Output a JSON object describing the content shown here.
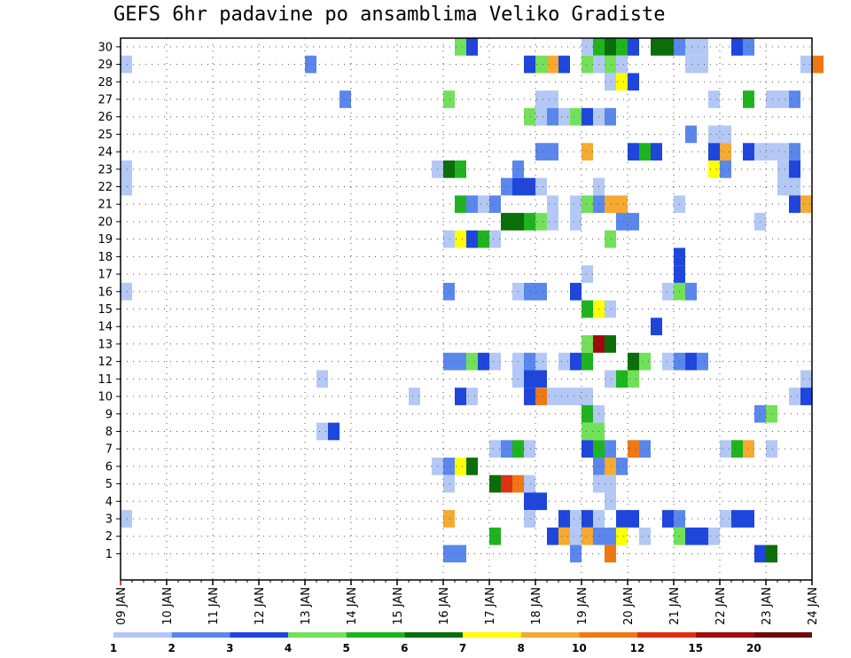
{
  "chart_data": {
    "type": "heatmap",
    "title": "GEFS 6hr padavine po ansamblima Veliko Gradiste",
    "y_members": [
      1,
      30
    ],
    "x_tick_labels": [
      "09 JAN",
      "10 JAN",
      "11 JAN",
      "12 JAN",
      "13 JAN",
      "14 JAN",
      "15 JAN",
      "16 JAN",
      "17 JAN",
      "18 JAN",
      "19 JAN",
      "20 JAN",
      "21 JAN",
      "22 JAN",
      "23 JAN",
      "24 JAN"
    ],
    "x_start_day": 9,
    "x_end_day": 24,
    "steps_per_day": 4,
    "grid": true,
    "legend_placement": "bottom",
    "legend_levels": [
      "1",
      "2",
      "3",
      "4",
      "5",
      "6",
      "7",
      "8",
      "10",
      "12",
      "15",
      "20"
    ],
    "legend_colors": [
      "#b4c8f5",
      "#5a87eb",
      "#1e46dc",
      "#73e05a",
      "#1eb41e",
      "#0a6e0a",
      "#ffff00",
      "#f5aa32",
      "#f07814",
      "#dc3214",
      "#a00a0a",
      "#6e0a0a"
    ],
    "cells": [
      {
        "member": 30,
        "day": 16.25,
        "c": 3
      },
      {
        "member": 30,
        "day": 16.5,
        "c": 2
      },
      {
        "member": 30,
        "day": 19.0,
        "c": 0
      },
      {
        "member": 30,
        "day": 19.25,
        "c": 4
      },
      {
        "member": 30,
        "day": 19.5,
        "c": 5
      },
      {
        "member": 30,
        "day": 19.75,
        "c": 4
      },
      {
        "member": 30,
        "day": 20.0,
        "c": 2
      },
      {
        "member": 30,
        "day": 20.5,
        "c": 5
      },
      {
        "member": 30,
        "day": 20.75,
        "c": 5
      },
      {
        "member": 30,
        "day": 21.0,
        "c": 1
      },
      {
        "member": 30,
        "day": 21.25,
        "c": 0
      },
      {
        "member": 30,
        "day": 21.5,
        "c": 0
      },
      {
        "member": 30,
        "day": 22.25,
        "c": 2
      },
      {
        "member": 30,
        "day": 22.5,
        "c": 1
      },
      {
        "member": 29,
        "day": 9.0,
        "c": 0
      },
      {
        "member": 29,
        "day": 13.0,
        "c": 1
      },
      {
        "member": 29,
        "day": 17.75,
        "c": 2
      },
      {
        "member": 29,
        "day": 18.0,
        "c": 3
      },
      {
        "member": 29,
        "day": 18.25,
        "c": 7
      },
      {
        "member": 29,
        "day": 18.5,
        "c": 2
      },
      {
        "member": 29,
        "day": 19.0,
        "c": 3
      },
      {
        "member": 29,
        "day": 19.25,
        "c": 0
      },
      {
        "member": 29,
        "day": 19.5,
        "c": 3
      },
      {
        "member": 29,
        "day": 19.75,
        "c": 0
      },
      {
        "member": 29,
        "day": 21.25,
        "c": 0
      },
      {
        "member": 29,
        "day": 21.5,
        "c": 0
      },
      {
        "member": 29,
        "day": 23.75,
        "c": 0
      },
      {
        "member": 29,
        "day": 24.0,
        "c": 8
      },
      {
        "member": 28,
        "day": 19.5,
        "c": 0
      },
      {
        "member": 28,
        "day": 19.75,
        "c": 6
      },
      {
        "member": 28,
        "day": 20.0,
        "c": 2
      },
      {
        "member": 27,
        "day": 13.75,
        "c": 1
      },
      {
        "member": 27,
        "day": 16.0,
        "c": 3
      },
      {
        "member": 27,
        "day": 18.0,
        "c": 0
      },
      {
        "member": 27,
        "day": 18.25,
        "c": 0
      },
      {
        "member": 27,
        "day": 21.75,
        "c": 0
      },
      {
        "member": 27,
        "day": 22.5,
        "c": 4
      },
      {
        "member": 27,
        "day": 23.0,
        "c": 0
      },
      {
        "member": 27,
        "day": 23.25,
        "c": 0
      },
      {
        "member": 27,
        "day": 23.5,
        "c": 1
      },
      {
        "member": 26,
        "day": 17.75,
        "c": 3
      },
      {
        "member": 26,
        "day": 18.0,
        "c": 0
      },
      {
        "member": 26,
        "day": 18.25,
        "c": 1
      },
      {
        "member": 26,
        "day": 18.5,
        "c": 0
      },
      {
        "member": 26,
        "day": 18.75,
        "c": 3
      },
      {
        "member": 26,
        "day": 19.0,
        "c": 2
      },
      {
        "member": 26,
        "day": 19.25,
        "c": 0
      },
      {
        "member": 26,
        "day": 19.5,
        "c": 1
      },
      {
        "member": 25,
        "day": 21.25,
        "c": 1
      },
      {
        "member": 25,
        "day": 21.75,
        "c": 0
      },
      {
        "member": 25,
        "day": 22.0,
        "c": 0
      },
      {
        "member": 24,
        "day": 18.0,
        "c": 1
      },
      {
        "member": 24,
        "day": 18.25,
        "c": 1
      },
      {
        "member": 24,
        "day": 19.0,
        "c": 7
      },
      {
        "member": 24,
        "day": 20.0,
        "c": 2
      },
      {
        "member": 24,
        "day": 20.25,
        "c": 4
      },
      {
        "member": 24,
        "day": 20.5,
        "c": 2
      },
      {
        "member": 24,
        "day": 21.75,
        "c": 2
      },
      {
        "member": 24,
        "day": 22.0,
        "c": 7
      },
      {
        "member": 24,
        "day": 22.5,
        "c": 2
      },
      {
        "member": 24,
        "day": 22.75,
        "c": 0
      },
      {
        "member": 24,
        "day": 23.0,
        "c": 0
      },
      {
        "member": 24,
        "day": 23.25,
        "c": 0
      },
      {
        "member": 24,
        "day": 23.5,
        "c": 1
      },
      {
        "member": 23,
        "day": 9.0,
        "c": 0
      },
      {
        "member": 23,
        "day": 15.75,
        "c": 0
      },
      {
        "member": 23,
        "day": 16.0,
        "c": 5
      },
      {
        "member": 23,
        "day": 16.25,
        "c": 4
      },
      {
        "member": 23,
        "day": 17.5,
        "c": 1
      },
      {
        "member": 23,
        "day": 21.75,
        "c": 6
      },
      {
        "member": 23,
        "day": 22.0,
        "c": 1
      },
      {
        "member": 23,
        "day": 23.25,
        "c": 0
      },
      {
        "member": 23,
        "day": 23.5,
        "c": 2
      },
      {
        "member": 22,
        "day": 9.0,
        "c": 0
      },
      {
        "member": 22,
        "day": 17.25,
        "c": 1
      },
      {
        "member": 22,
        "day": 17.5,
        "c": 2
      },
      {
        "member": 22,
        "day": 17.75,
        "c": 2
      },
      {
        "member": 22,
        "day": 18.0,
        "c": 0
      },
      {
        "member": 22,
        "day": 19.25,
        "c": 0
      },
      {
        "member": 22,
        "day": 23.25,
        "c": 0
      },
      {
        "member": 22,
        "day": 23.5,
        "c": 0
      },
      {
        "member": 21,
        "day": 16.25,
        "c": 4
      },
      {
        "member": 21,
        "day": 16.5,
        "c": 1
      },
      {
        "member": 21,
        "day": 16.75,
        "c": 0
      },
      {
        "member": 21,
        "day": 17.0,
        "c": 1
      },
      {
        "member": 21,
        "day": 18.25,
        "c": 0
      },
      {
        "member": 21,
        "day": 18.75,
        "c": 0
      },
      {
        "member": 21,
        "day": 19.0,
        "c": 3
      },
      {
        "member": 21,
        "day": 19.25,
        "c": 1
      },
      {
        "member": 21,
        "day": 19.5,
        "c": 7
      },
      {
        "member": 21,
        "day": 19.75,
        "c": 7
      },
      {
        "member": 21,
        "day": 21.0,
        "c": 0
      },
      {
        "member": 21,
        "day": 23.5,
        "c": 2
      },
      {
        "member": 21,
        "day": 23.75,
        "c": 7
      },
      {
        "member": 20,
        "day": 17.25,
        "c": 5
      },
      {
        "member": 20,
        "day": 17.5,
        "c": 5
      },
      {
        "member": 20,
        "day": 17.75,
        "c": 4
      },
      {
        "member": 20,
        "day": 18.0,
        "c": 3
      },
      {
        "member": 20,
        "day": 18.25,
        "c": 0
      },
      {
        "member": 20,
        "day": 18.75,
        "c": 0
      },
      {
        "member": 20,
        "day": 19.75,
        "c": 1
      },
      {
        "member": 20,
        "day": 20.0,
        "c": 1
      },
      {
        "member": 20,
        "day": 22.75,
        "c": 0
      },
      {
        "member": 19,
        "day": 16.0,
        "c": 0
      },
      {
        "member": 19,
        "day": 16.25,
        "c": 6
      },
      {
        "member": 19,
        "day": 16.5,
        "c": 2
      },
      {
        "member": 19,
        "day": 16.75,
        "c": 4
      },
      {
        "member": 19,
        "day": 17.0,
        "c": 0
      },
      {
        "member": 19,
        "day": 19.5,
        "c": 3
      },
      {
        "member": 18,
        "day": 21.0,
        "c": 2
      },
      {
        "member": 17,
        "day": 19.0,
        "c": 0
      },
      {
        "member": 17,
        "day": 21.0,
        "c": 2
      },
      {
        "member": 16,
        "day": 9.0,
        "c": 0
      },
      {
        "member": 16,
        "day": 16.0,
        "c": 1
      },
      {
        "member": 16,
        "day": 17.5,
        "c": 0
      },
      {
        "member": 16,
        "day": 17.75,
        "c": 1
      },
      {
        "member": 16,
        "day": 18.0,
        "c": 1
      },
      {
        "member": 16,
        "day": 18.75,
        "c": 2
      },
      {
        "member": 16,
        "day": 20.75,
        "c": 0
      },
      {
        "member": 16,
        "day": 21.0,
        "c": 3
      },
      {
        "member": 16,
        "day": 21.25,
        "c": 1
      },
      {
        "member": 15,
        "day": 19.0,
        "c": 4
      },
      {
        "member": 15,
        "day": 19.25,
        "c": 6
      },
      {
        "member": 15,
        "day": 19.5,
        "c": 0
      },
      {
        "member": 14,
        "day": 20.5,
        "c": 2
      },
      {
        "member": 13,
        "day": 19.0,
        "c": 3
      },
      {
        "member": 13,
        "day": 19.25,
        "c": 10
      },
      {
        "member": 13,
        "day": 19.5,
        "c": 5
      },
      {
        "member": 12,
        "day": 16.0,
        "c": 1
      },
      {
        "member": 12,
        "day": 16.25,
        "c": 1
      },
      {
        "member": 12,
        "day": 16.5,
        "c": 3
      },
      {
        "member": 12,
        "day": 16.75,
        "c": 2
      },
      {
        "member": 12,
        "day": 17.0,
        "c": 0
      },
      {
        "member": 12,
        "day": 17.5,
        "c": 0
      },
      {
        "member": 12,
        "day": 17.75,
        "c": 1
      },
      {
        "member": 12,
        "day": 18.0,
        "c": 0
      },
      {
        "member": 12,
        "day": 18.5,
        "c": 0
      },
      {
        "member": 12,
        "day": 18.75,
        "c": 2
      },
      {
        "member": 12,
        "day": 19.0,
        "c": 4
      },
      {
        "member": 12,
        "day": 20.0,
        "c": 5
      },
      {
        "member": 12,
        "day": 20.25,
        "c": 3
      },
      {
        "member": 12,
        "day": 20.75,
        "c": 0
      },
      {
        "member": 12,
        "day": 21.0,
        "c": 1
      },
      {
        "member": 12,
        "day": 21.25,
        "c": 2
      },
      {
        "member": 12,
        "day": 21.5,
        "c": 1
      },
      {
        "member": 11,
        "day": 13.25,
        "c": 0
      },
      {
        "member": 11,
        "day": 17.5,
        "c": 0
      },
      {
        "member": 11,
        "day": 17.75,
        "c": 2
      },
      {
        "member": 11,
        "day": 18.0,
        "c": 2
      },
      {
        "member": 11,
        "day": 19.5,
        "c": 0
      },
      {
        "member": 11,
        "day": 19.75,
        "c": 4
      },
      {
        "member": 11,
        "day": 20.0,
        "c": 3
      },
      {
        "member": 11,
        "day": 23.75,
        "c": 0
      },
      {
        "member": 10,
        "day": 15.25,
        "c": 0
      },
      {
        "member": 10,
        "day": 16.25,
        "c": 2
      },
      {
        "member": 10,
        "day": 16.5,
        "c": 0
      },
      {
        "member": 10,
        "day": 17.75,
        "c": 2
      },
      {
        "member": 10,
        "day": 18.0,
        "c": 8
      },
      {
        "member": 10,
        "day": 18.25,
        "c": 0
      },
      {
        "member": 10,
        "day": 18.5,
        "c": 0
      },
      {
        "member": 10,
        "day": 18.75,
        "c": 0
      },
      {
        "member": 10,
        "day": 19.0,
        "c": 0
      },
      {
        "member": 10,
        "day": 23.5,
        "c": 0
      },
      {
        "member": 10,
        "day": 23.75,
        "c": 2
      },
      {
        "member": 9,
        "day": 19.0,
        "c": 4
      },
      {
        "member": 9,
        "day": 19.25,
        "c": 0
      },
      {
        "member": 9,
        "day": 22.75,
        "c": 1
      },
      {
        "member": 9,
        "day": 23.0,
        "c": 3
      },
      {
        "member": 8,
        "day": 13.25,
        "c": 0
      },
      {
        "member": 8,
        "day": 13.5,
        "c": 2
      },
      {
        "member": 8,
        "day": 19.0,
        "c": 3
      },
      {
        "member": 8,
        "day": 19.25,
        "c": 3
      },
      {
        "member": 7,
        "day": 17.0,
        "c": 0
      },
      {
        "member": 7,
        "day": 17.25,
        "c": 1
      },
      {
        "member": 7,
        "day": 17.5,
        "c": 4
      },
      {
        "member": 7,
        "day": 17.75,
        "c": 0
      },
      {
        "member": 7,
        "day": 19.0,
        "c": 2
      },
      {
        "member": 7,
        "day": 19.25,
        "c": 4
      },
      {
        "member": 7,
        "day": 19.5,
        "c": 1
      },
      {
        "member": 7,
        "day": 20.0,
        "c": 8
      },
      {
        "member": 7,
        "day": 20.25,
        "c": 1
      },
      {
        "member": 7,
        "day": 22.0,
        "c": 0
      },
      {
        "member": 7,
        "day": 22.25,
        "c": 4
      },
      {
        "member": 7,
        "day": 22.5,
        "c": 7
      },
      {
        "member": 7,
        "day": 23.0,
        "c": 0
      },
      {
        "member": 6,
        "day": 15.75,
        "c": 0
      },
      {
        "member": 6,
        "day": 16.0,
        "c": 1
      },
      {
        "member": 6,
        "day": 16.25,
        "c": 6
      },
      {
        "member": 6,
        "day": 16.5,
        "c": 5
      },
      {
        "member": 6,
        "day": 19.25,
        "c": 1
      },
      {
        "member": 6,
        "day": 19.5,
        "c": 7
      },
      {
        "member": 6,
        "day": 19.75,
        "c": 1
      },
      {
        "member": 5,
        "day": 16.0,
        "c": 0
      },
      {
        "member": 5,
        "day": 17.0,
        "c": 5
      },
      {
        "member": 5,
        "day": 17.25,
        "c": 9
      },
      {
        "member": 5,
        "day": 17.5,
        "c": 8
      },
      {
        "member": 5,
        "day": 17.75,
        "c": 0
      },
      {
        "member": 5,
        "day": 19.25,
        "c": 0
      },
      {
        "member": 5,
        "day": 19.5,
        "c": 0
      },
      {
        "member": 4,
        "day": 17.75,
        "c": 2
      },
      {
        "member": 4,
        "day": 18.0,
        "c": 2
      },
      {
        "member": 4,
        "day": 19.5,
        "c": 0
      },
      {
        "member": 3,
        "day": 9.0,
        "c": 0
      },
      {
        "member": 3,
        "day": 16.0,
        "c": 7
      },
      {
        "member": 3,
        "day": 17.75,
        "c": 0
      },
      {
        "member": 3,
        "day": 18.5,
        "c": 2
      },
      {
        "member": 3,
        "day": 18.75,
        "c": 0
      },
      {
        "member": 3,
        "day": 19.0,
        "c": 2
      },
      {
        "member": 3,
        "day": 19.25,
        "c": 0
      },
      {
        "member": 3,
        "day": 19.75,
        "c": 2
      },
      {
        "member": 3,
        "day": 20.0,
        "c": 2
      },
      {
        "member": 3,
        "day": 20.75,
        "c": 2
      },
      {
        "member": 3,
        "day": 21.0,
        "c": 1
      },
      {
        "member": 3,
        "day": 22.0,
        "c": 0
      },
      {
        "member": 3,
        "day": 22.25,
        "c": 2
      },
      {
        "member": 3,
        "day": 22.5,
        "c": 2
      },
      {
        "member": 2,
        "day": 17.0,
        "c": 4
      },
      {
        "member": 2,
        "day": 18.25,
        "c": 2
      },
      {
        "member": 2,
        "day": 18.5,
        "c": 7
      },
      {
        "member": 2,
        "day": 18.75,
        "c": 0
      },
      {
        "member": 2,
        "day": 19.0,
        "c": 7
      },
      {
        "member": 2,
        "day": 19.25,
        "c": 1
      },
      {
        "member": 2,
        "day": 19.5,
        "c": 1
      },
      {
        "member": 2,
        "day": 19.75,
        "c": 6
      },
      {
        "member": 2,
        "day": 20.25,
        "c": 0
      },
      {
        "member": 2,
        "day": 21.0,
        "c": 3
      },
      {
        "member": 2,
        "day": 21.25,
        "c": 2
      },
      {
        "member": 2,
        "day": 21.5,
        "c": 2
      },
      {
        "member": 2,
        "day": 21.75,
        "c": 0
      },
      {
        "member": 1,
        "day": 16.0,
        "c": 1
      },
      {
        "member": 1,
        "day": 16.25,
        "c": 1
      },
      {
        "member": 1,
        "day": 18.75,
        "c": 1
      },
      {
        "member": 1,
        "day": 19.5,
        "c": 8
      },
      {
        "member": 1,
        "day": 22.75,
        "c": 2
      },
      {
        "member": 1,
        "day": 23.0,
        "c": 5
      }
    ]
  }
}
